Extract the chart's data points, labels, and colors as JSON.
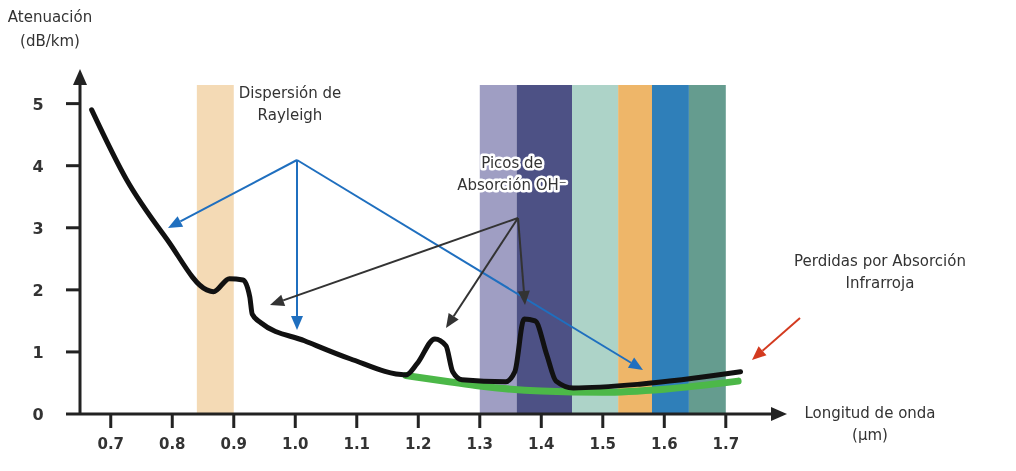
{
  "chart_data": {
    "type": "line",
    "ylabel": "Atenuación\n(dB/km)",
    "xlabel": "Longitud de onda\n(µm)",
    "xlim": [
      0.65,
      1.78
    ],
    "ylim": [
      0,
      5.3
    ],
    "xticks": [
      {
        "value": 0.7,
        "label": "0.7"
      },
      {
        "value": 0.8,
        "label": "0.8"
      },
      {
        "value": 0.9,
        "label": "0.9"
      },
      {
        "value": 1.0,
        "label": "1.0"
      },
      {
        "value": 1.1,
        "label": "1.1"
      },
      {
        "value": 1.2,
        "label": "1.2"
      },
      {
        "value": 1.3,
        "label": "1.3"
      },
      {
        "value": 1.4,
        "label": "1.4"
      },
      {
        "value": 1.5,
        "label": "1.5"
      },
      {
        "value": 1.6,
        "label": "1.6"
      },
      {
        "value": 1.7,
        "label": "1.7"
      }
    ],
    "yticks": [
      0,
      1,
      2,
      3,
      4,
      5
    ],
    "grid": false,
    "marker": "none",
    "line_style": "solid",
    "bands": [
      {
        "axis": "x",
        "from": 0.84,
        "to": 0.9,
        "color": "#f2d3a8"
      },
      {
        "axis": "x",
        "from": 1.3,
        "to": 1.36,
        "color": "#8e8db8"
      },
      {
        "axis": "x",
        "from": 1.36,
        "to": 1.45,
        "color": "#2e3270"
      },
      {
        "axis": "x",
        "from": 1.45,
        "to": 1.525,
        "color": "#9fcbbe"
      },
      {
        "axis": "x",
        "from": 1.525,
        "to": 1.58,
        "color": "#eba94f"
      },
      {
        "axis": "x",
        "from": 1.58,
        "to": 1.64,
        "color": "#0b68ad"
      },
      {
        "axis": "x",
        "from": 1.64,
        "to": 1.7,
        "color": "#4a8b7b"
      }
    ],
    "series": [
      {
        "color": "#4cb848",
        "x": [
          1.18,
          1.25,
          1.3,
          1.4,
          1.5,
          1.6,
          1.72
        ],
        "values": [
          0.62,
          0.52,
          0.45,
          0.37,
          0.35,
          0.4,
          0.53
        ]
      },
      {
        "color": "#111111",
        "x": [
          0.669,
          0.726,
          0.791,
          0.856,
          0.867,
          0.893,
          0.915,
          0.926,
          0.93,
          0.944,
          1.015,
          1.089,
          1.18,
          1.198,
          1.227,
          1.245,
          1.256,
          1.271,
          1.342,
          1.357,
          1.372,
          1.39,
          1.409,
          1.424,
          1.452,
          1.56,
          1.724
        ],
        "values": [
          4.9,
          3.77,
          2.82,
          2.0,
          1.97,
          2.18,
          2.16,
          1.89,
          1.61,
          1.47,
          1.18,
          0.89,
          0.63,
          0.81,
          1.21,
          1.1,
          0.68,
          0.55,
          0.52,
          0.68,
          1.53,
          1.5,
          0.95,
          0.53,
          0.42,
          0.48,
          0.68
        ]
      }
    ],
    "annotations": [
      "Dispersión de\nRayleigh",
      "Picos de\nAbsorción OH⁻",
      "Perdidas por Absorción\nInfrarroja"
    ]
  }
}
